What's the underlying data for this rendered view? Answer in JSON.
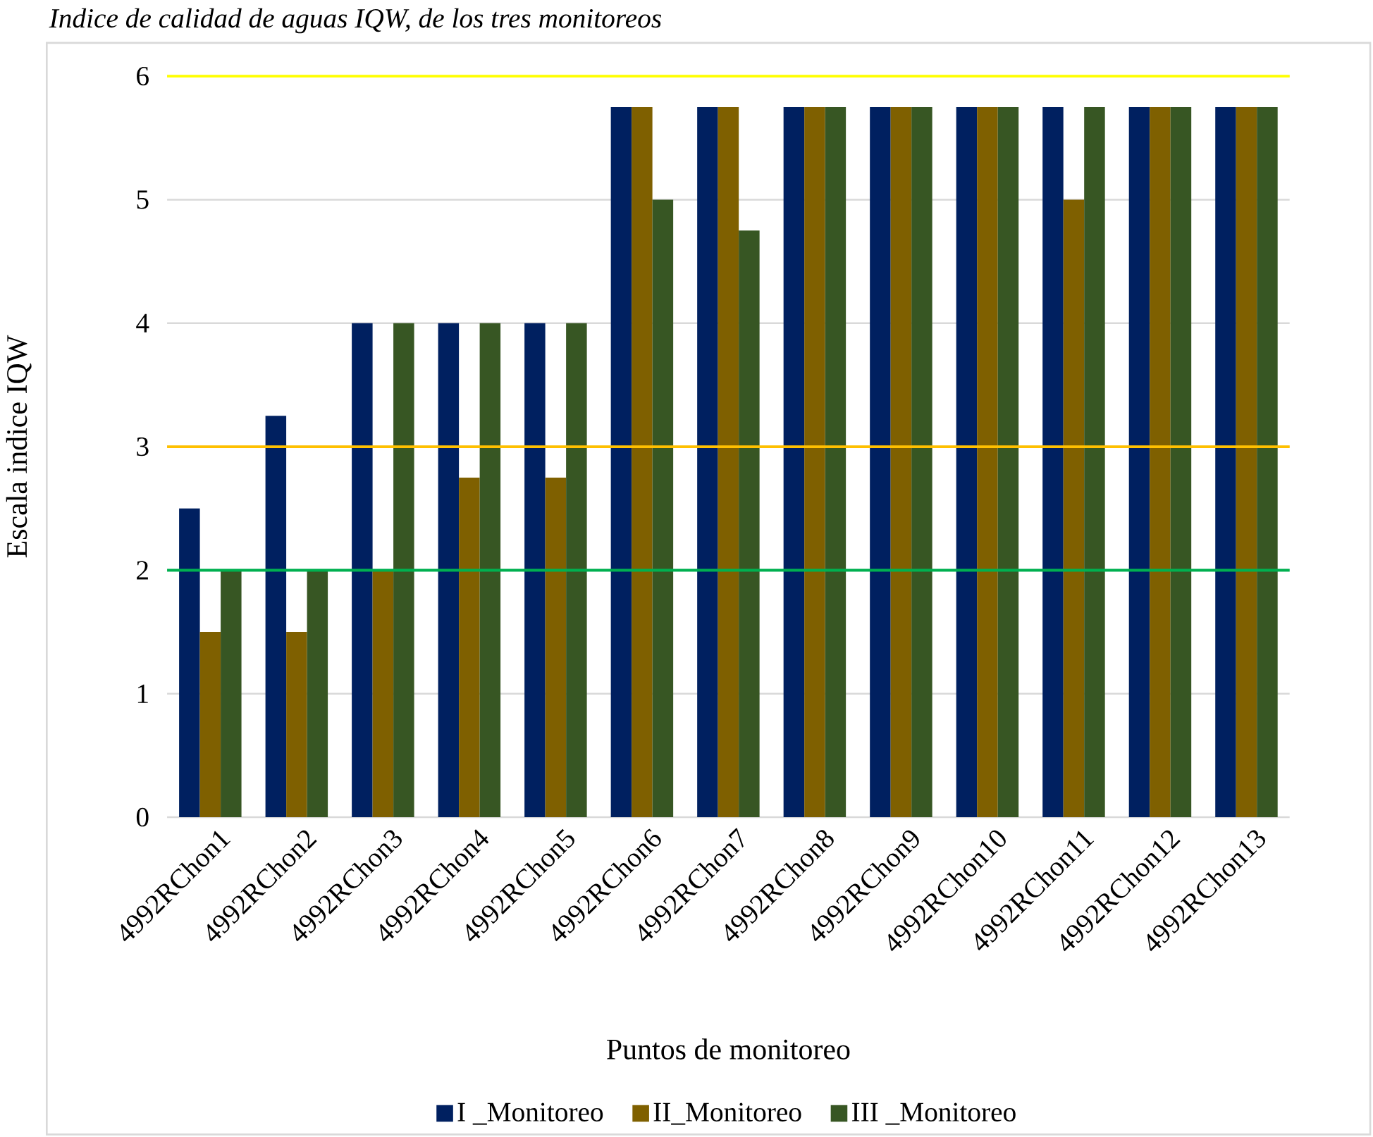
{
  "chart_data": {
    "type": "bar",
    "title": "Indice de calidad de aguas IQW, de los tres monitoreos",
    "xlabel": "Puntos de monitoreo",
    "ylabel": "Escala indice IQW",
    "categories": [
      "4992RChon1",
      "4992RChon2",
      "4992RChon3",
      "4992RChon4",
      "4992RChon5",
      "4992RChon6",
      "4992RChon7",
      "4992RChon8",
      "4992RChon9",
      "4992RChon10",
      "4992RChon11",
      "4992RChon12",
      "4992RChon13"
    ],
    "series": [
      {
        "name": "I _Monitoreo",
        "color": "#002060",
        "values": [
          2.5,
          3.25,
          4,
          4,
          4,
          5.75,
          5.75,
          5.75,
          5.75,
          5.75,
          5.75,
          5.75,
          5.75
        ]
      },
      {
        "name": "II_Monitoreo",
        "color": "#7f6000",
        "values": [
          1.5,
          1.5,
          2,
          2.75,
          2.75,
          5.75,
          5.75,
          5.75,
          5.75,
          5.75,
          5,
          5.75,
          5.75
        ]
      },
      {
        "name": "III _Monitoreo",
        "color": "#375623",
        "values": [
          2,
          2,
          4,
          4,
          4,
          5,
          4.75,
          5.75,
          5.75,
          5.75,
          5.75,
          5.75,
          5.75
        ]
      }
    ],
    "ylim": [
      0,
      6
    ],
    "yticks": [
      0,
      1,
      2,
      3,
      4,
      5,
      6
    ],
    "grid": "y",
    "legend": "bottom",
    "ref_lines": [
      {
        "axis": "y",
        "value": 6,
        "color": "#ffff00"
      },
      {
        "axis": "y",
        "value": 3,
        "color": "#ffc000"
      },
      {
        "axis": "y",
        "value": 2,
        "color": "#00b050"
      }
    ]
  }
}
